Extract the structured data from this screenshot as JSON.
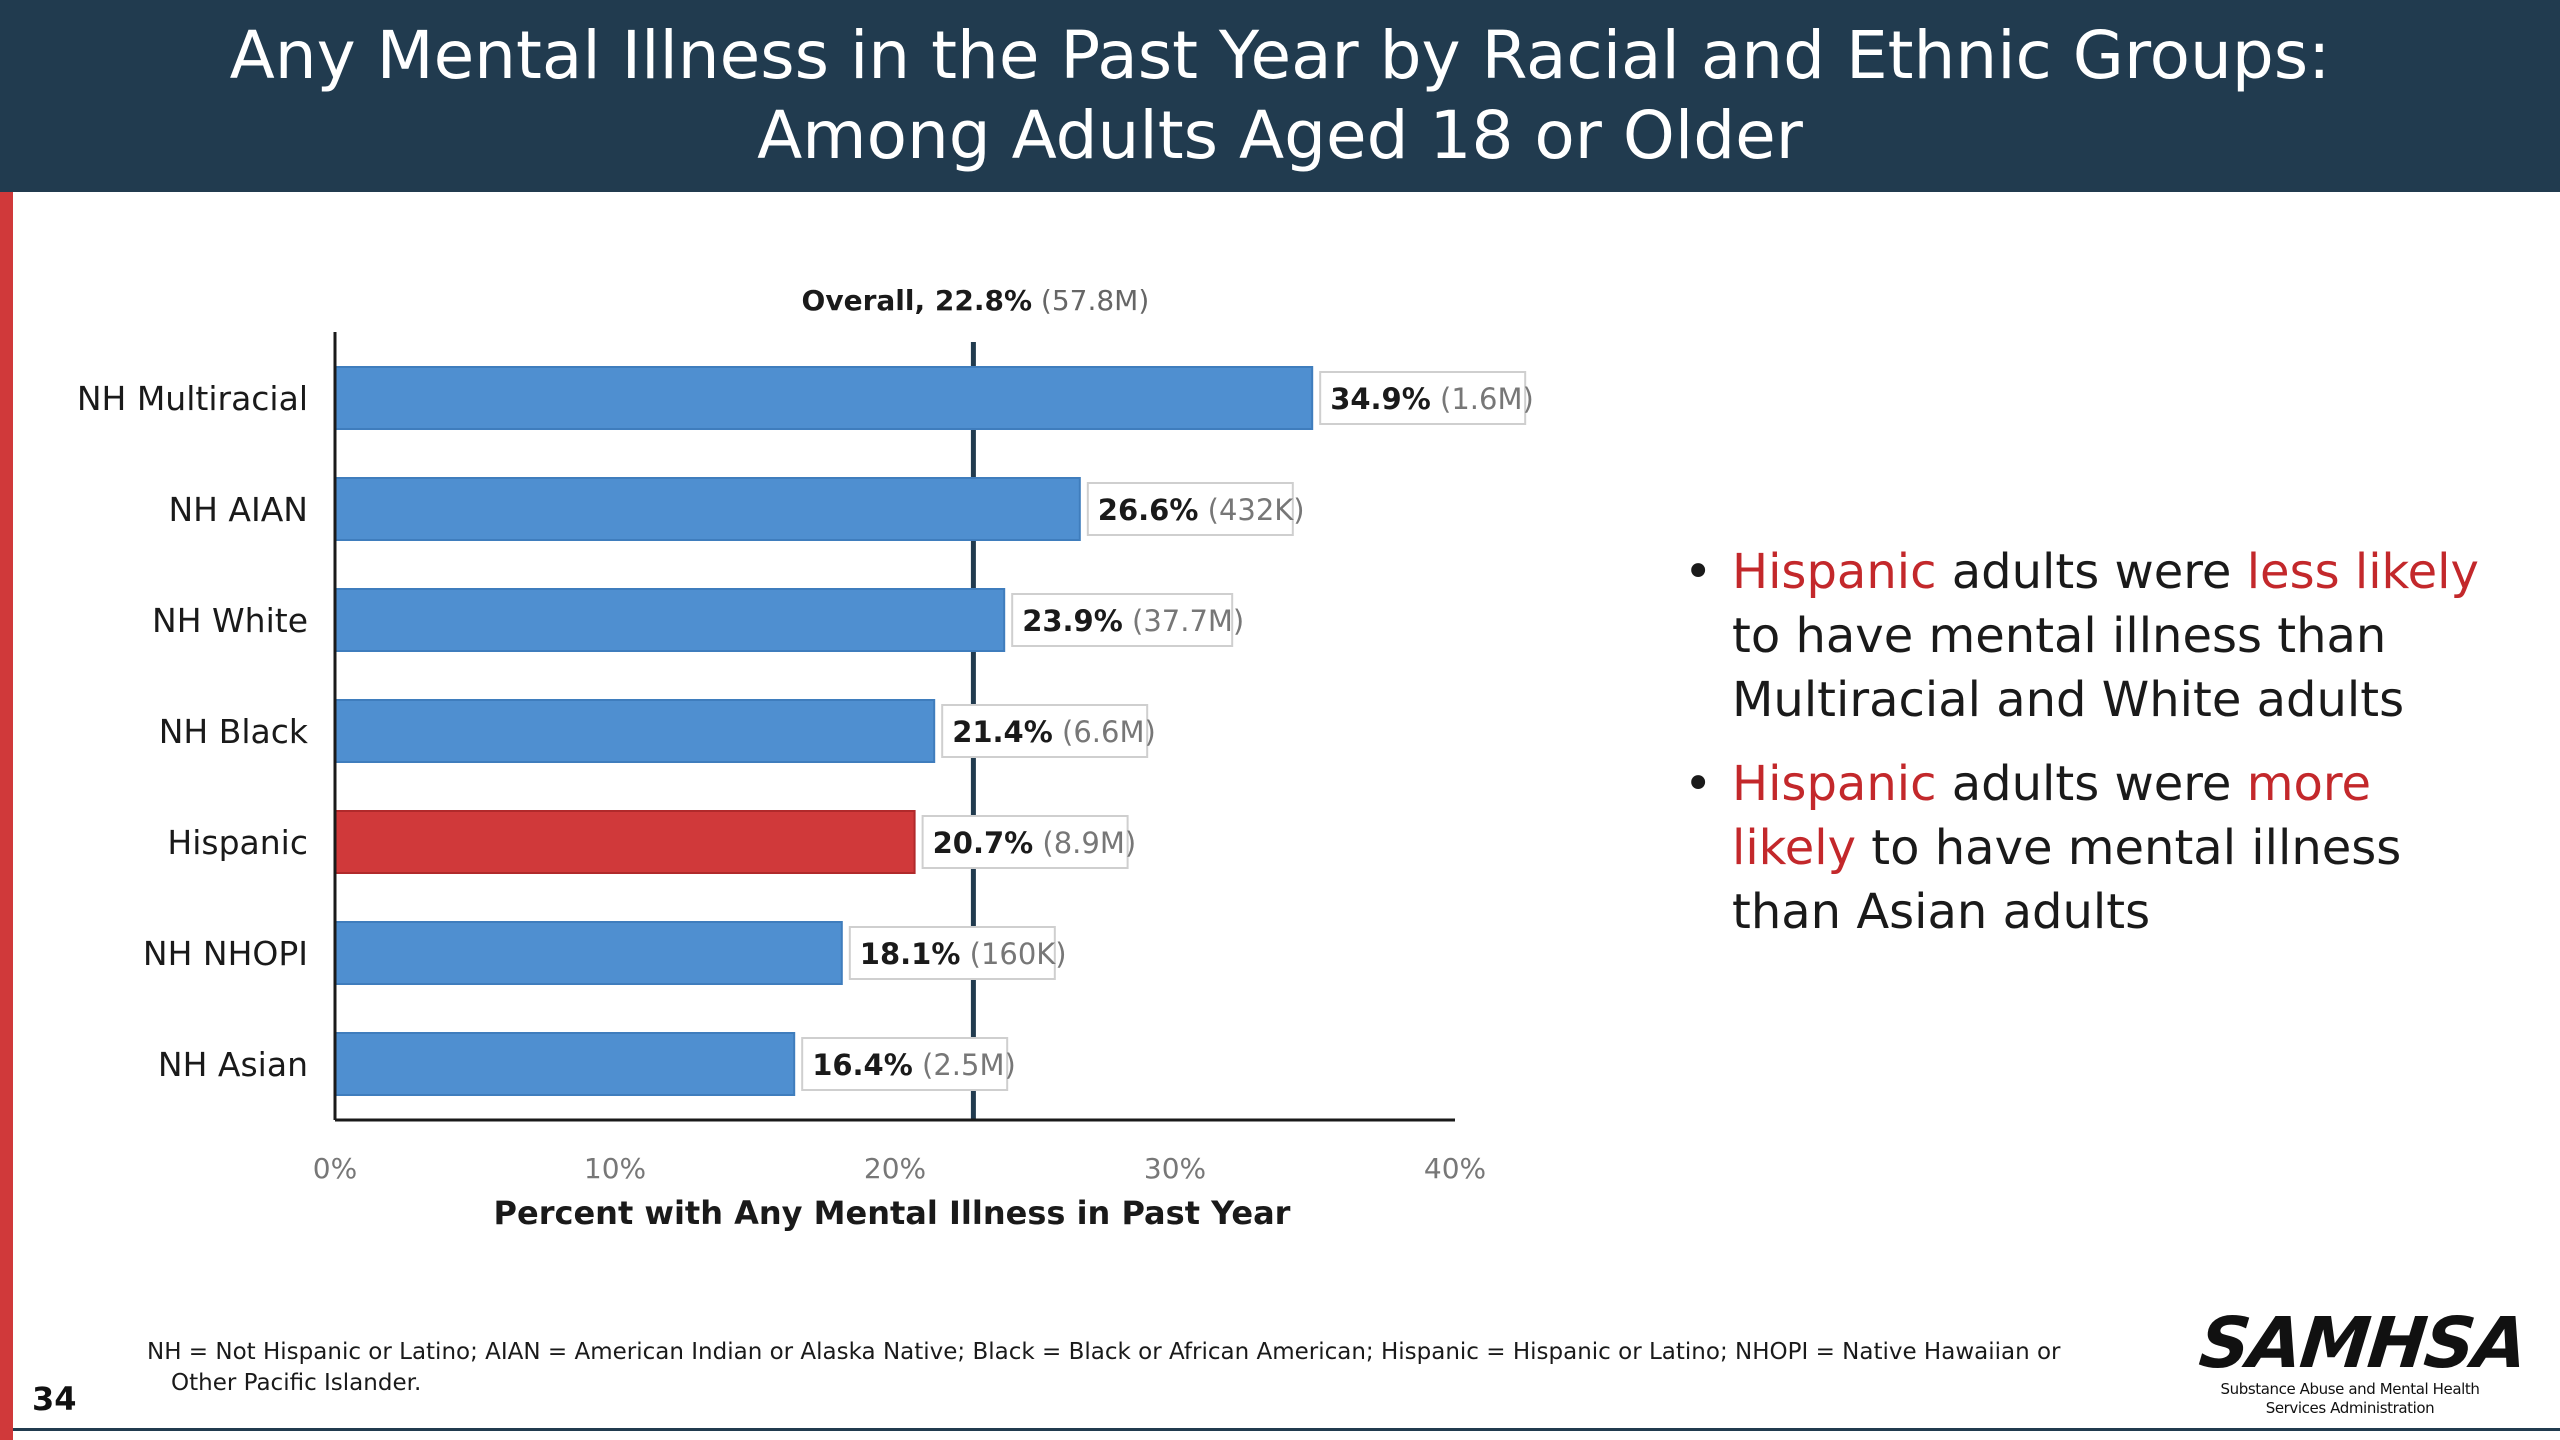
{
  "slide": {
    "title_line1": "Any Mental Illness in the Past Year by Racial and Ethnic Groups:",
    "title_line2": "Among Adults Aged 18 or Older",
    "page_number": "34",
    "footnote_line1": "NH = Not Hispanic or Latino; AIAN = American Indian or Alaska Native; Black = Black or African American; Hispanic = Hispanic or Latino; NHOPI = Native Hawaiian or",
    "footnote_line2": "Other Pacific Islander.",
    "logo": {
      "wordmark": "SAMHSA",
      "sub_line1": "Substance Abuse and Mental Health",
      "sub_line2": "Services Administration"
    }
  },
  "bullets": [
    {
      "marker": "•",
      "parts": [
        {
          "text": "Hispanic",
          "highlight": true
        },
        {
          "text": " adults were ",
          "highlight": false
        },
        {
          "text": "less likely",
          "highlight": true
        },
        {
          "text": " to have mental illness than Multiracial and White adults",
          "highlight": false
        }
      ]
    },
    {
      "marker": "•",
      "parts": [
        {
          "text": "Hispanic",
          "highlight": true
        },
        {
          "text": " adults were ",
          "highlight": false
        },
        {
          "text": "more likely",
          "highlight": true
        },
        {
          "text": " to have mental illness than Asian adults",
          "highlight": false
        }
      ]
    }
  ],
  "colors": {
    "title_bg": "#213b4f",
    "accent_red": "#c3282b",
    "bar_default": "#4f8fd0",
    "bar_highlight": "#d0393a"
  },
  "chart_data": {
    "type": "bar",
    "orientation": "horizontal",
    "categories": [
      "NH Multiracial",
      "NH AIAN",
      "NH White",
      "NH Black",
      "Hispanic",
      "NH NHOPI",
      "NH Asian"
    ],
    "values": [
      34.9,
      26.6,
      23.9,
      21.4,
      20.7,
      18.1,
      16.4
    ],
    "value_labels": [
      "34.9%",
      "26.6%",
      "23.9%",
      "21.4%",
      "20.7%",
      "18.1%",
      "16.4%"
    ],
    "count_labels": [
      "(1.6M)",
      "(432K)",
      "(37.7M)",
      "(6.6M)",
      "(8.9M)",
      "(160K)",
      "(2.5M)"
    ],
    "highlight_category": "Hispanic",
    "reference_line": {
      "value": 22.8,
      "label_bold": "Overall, 22.8%",
      "label_count": "(57.8M)"
    },
    "xlabel": "Percent with Any Mental Illness in Past Year",
    "ylabel": "",
    "xlim": [
      0,
      40
    ],
    "xticks": [
      0,
      10,
      20,
      30,
      40
    ],
    "xtick_labels": [
      "0%",
      "10%",
      "20%",
      "30%",
      "40%"
    ],
    "grid": false,
    "legend": "none"
  }
}
